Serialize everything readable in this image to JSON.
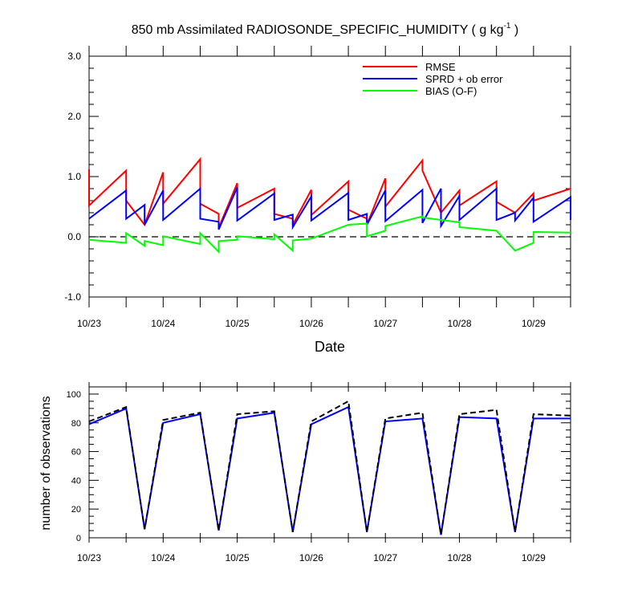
{
  "chart_data": [
    {
      "type": "line",
      "title_main": "850 mb Assimilated RADIOSONDE_SPECIFIC_HUMIDITY ( g kg",
      "title_sup": "-1",
      "title_end": " )",
      "xlabel": "Date",
      "ylabel": "",
      "xlim": [
        23.0,
        29.5
      ],
      "ylim": [
        -1.0,
        3.0
      ],
      "yticks": [
        "-1.0",
        "0.0",
        "1.0",
        "2.0",
        "3.0"
      ],
      "ytick_values": [
        -1.0,
        0.0,
        1.0,
        2.0,
        3.0
      ],
      "xticks": [
        "10/23",
        "10/24",
        "10/25",
        "10/26",
        "10/27",
        "10/28",
        "10/29"
      ],
      "xtick_values": [
        23,
        24,
        25,
        26,
        27,
        28,
        29
      ],
      "zero_line": true,
      "legend_position": "top-right",
      "series": [
        {
          "name": "RMSE",
          "color": "#ff0000",
          "points": [
            [
              23.0,
              1.12
            ],
            [
              23.0,
              0.52
            ],
            [
              23.5,
              1.1
            ],
            [
              23.5,
              0.6
            ],
            [
              23.75,
              0.2
            ],
            [
              24.0,
              1.07
            ],
            [
              24.0,
              0.55
            ],
            [
              24.5,
              1.29
            ],
            [
              24.5,
              0.55
            ],
            [
              24.75,
              0.38
            ],
            [
              24.75,
              0.15
            ],
            [
              25.0,
              0.89
            ],
            [
              25.0,
              0.48
            ],
            [
              25.5,
              0.8
            ],
            [
              25.5,
              0.38
            ],
            [
              25.75,
              0.3
            ],
            [
              25.75,
              0.2
            ],
            [
              26.0,
              0.78
            ],
            [
              26.0,
              0.36
            ],
            [
              26.5,
              0.92
            ],
            [
              26.5,
              0.45
            ],
            [
              26.75,
              0.3
            ],
            [
              26.75,
              0.2
            ],
            [
              27.0,
              0.97
            ],
            [
              27.0,
              0.5
            ],
            [
              27.5,
              1.27
            ],
            [
              27.5,
              1.1
            ],
            [
              27.75,
              0.4
            ],
            [
              28.0,
              0.77
            ],
            [
              28.0,
              0.52
            ],
            [
              28.5,
              0.92
            ],
            [
              28.5,
              0.58
            ],
            [
              28.75,
              0.4
            ],
            [
              29.0,
              0.72
            ],
            [
              29.0,
              0.6
            ],
            [
              29.5,
              0.8
            ]
          ]
        },
        {
          "name": "SPRD + ob error",
          "color": "#0000ff",
          "points": [
            [
              23.0,
              0.3
            ],
            [
              23.5,
              0.77
            ],
            [
              23.5,
              0.3
            ],
            [
              23.75,
              0.53
            ],
            [
              23.75,
              0.2
            ],
            [
              24.0,
              0.77
            ],
            [
              24.0,
              0.28
            ],
            [
              24.5,
              0.8
            ],
            [
              24.5,
              0.3
            ],
            [
              24.75,
              0.25
            ],
            [
              24.75,
              0.12
            ],
            [
              25.0,
              0.82
            ],
            [
              25.0,
              0.27
            ],
            [
              25.5,
              0.72
            ],
            [
              25.5,
              0.28
            ],
            [
              25.75,
              0.37
            ],
            [
              25.75,
              0.16
            ],
            [
              26.0,
              0.67
            ],
            [
              26.0,
              0.27
            ],
            [
              26.5,
              0.73
            ],
            [
              26.5,
              0.28
            ],
            [
              26.75,
              0.38
            ],
            [
              26.75,
              0.2
            ],
            [
              27.0,
              0.77
            ],
            [
              27.0,
              0.26
            ],
            [
              27.5,
              0.78
            ],
            [
              27.5,
              0.23
            ],
            [
              27.75,
              0.8
            ],
            [
              27.75,
              0.18
            ],
            [
              28.0,
              0.68
            ],
            [
              28.0,
              0.28
            ],
            [
              28.5,
              0.8
            ],
            [
              28.5,
              0.28
            ],
            [
              28.75,
              0.4
            ],
            [
              28.75,
              0.27
            ],
            [
              29.0,
              0.65
            ],
            [
              29.0,
              0.25
            ],
            [
              29.5,
              0.66
            ],
            [
              29.5,
              0.28
            ]
          ]
        },
        {
          "name": "BIAS (O-F)",
          "color": "#00ff00",
          "points": [
            [
              23.0,
              -0.05
            ],
            [
              23.5,
              -0.1
            ],
            [
              23.5,
              0.06
            ],
            [
              23.75,
              -0.15
            ],
            [
              23.75,
              -0.07
            ],
            [
              24.0,
              -0.14
            ],
            [
              24.0,
              0.01
            ],
            [
              24.5,
              -0.12
            ],
            [
              24.5,
              0.06
            ],
            [
              24.75,
              -0.25
            ],
            [
              24.75,
              -0.07
            ],
            [
              25.0,
              -0.05
            ],
            [
              25.0,
              0.01
            ],
            [
              25.5,
              -0.04
            ],
            [
              25.5,
              0.04
            ],
            [
              25.75,
              -0.23
            ],
            [
              25.75,
              -0.06
            ],
            [
              26.0,
              -0.03
            ],
            [
              26.5,
              0.2
            ],
            [
              26.75,
              0.22
            ],
            [
              26.75,
              0.01
            ],
            [
              27.0,
              0.1
            ],
            [
              27.0,
              0.18
            ],
            [
              27.5,
              0.34
            ],
            [
              27.5,
              0.32
            ],
            [
              28.0,
              0.24
            ],
            [
              28.0,
              0.16
            ],
            [
              28.5,
              0.1
            ],
            [
              28.75,
              -0.23
            ],
            [
              29.0,
              -0.1
            ],
            [
              29.0,
              0.08
            ],
            [
              29.5,
              0.07
            ]
          ]
        }
      ]
    },
    {
      "type": "line",
      "ylabel": "number of observations",
      "xlim": [
        23.0,
        29.5
      ],
      "ylim": [
        0,
        105
      ],
      "yticks": [
        "0",
        "20",
        "40",
        "60",
        "80",
        "100"
      ],
      "ytick_values": [
        0,
        20,
        40,
        60,
        80,
        100
      ],
      "xticks": [
        "10/23",
        "10/24",
        "10/25",
        "10/26",
        "10/27",
        "10/28",
        "10/29"
      ],
      "xtick_values": [
        23,
        24,
        25,
        26,
        27,
        28,
        29
      ],
      "series": [
        {
          "name": "",
          "color": "#0000ff",
          "style": "solid",
          "points": [
            [
              23.0,
              79
            ],
            [
              23.5,
              90
            ],
            [
              23.75,
              6
            ],
            [
              24.0,
              80
            ],
            [
              24.5,
              86
            ],
            [
              24.75,
              5
            ],
            [
              25.0,
              83
            ],
            [
              25.5,
              87
            ],
            [
              25.75,
              4
            ],
            [
              26.0,
              79
            ],
            [
              26.5,
              91
            ],
            [
              26.75,
              4
            ],
            [
              27.0,
              81
            ],
            [
              27.5,
              83
            ],
            [
              27.75,
              2
            ],
            [
              28.0,
              84
            ],
            [
              28.5,
              83
            ],
            [
              28.75,
              4
            ],
            [
              29.0,
              83
            ],
            [
              29.5,
              83
            ]
          ]
        },
        {
          "name": "",
          "color": "#000000",
          "style": "dashed",
          "points": [
            [
              23.0,
              81
            ],
            [
              23.5,
              91
            ],
            [
              23.75,
              6
            ],
            [
              24.0,
              82
            ],
            [
              24.5,
              87
            ],
            [
              24.75,
              5
            ],
            [
              25.0,
              86
            ],
            [
              25.5,
              88
            ],
            [
              25.75,
              4
            ],
            [
              26.0,
              81
            ],
            [
              26.5,
              95
            ],
            [
              26.75,
              4
            ],
            [
              27.0,
              83
            ],
            [
              27.5,
              87
            ],
            [
              27.75,
              2
            ],
            [
              28.0,
              86
            ],
            [
              28.5,
              89
            ],
            [
              28.75,
              4
            ],
            [
              29.0,
              86
            ],
            [
              29.5,
              85
            ]
          ]
        }
      ]
    }
  ]
}
